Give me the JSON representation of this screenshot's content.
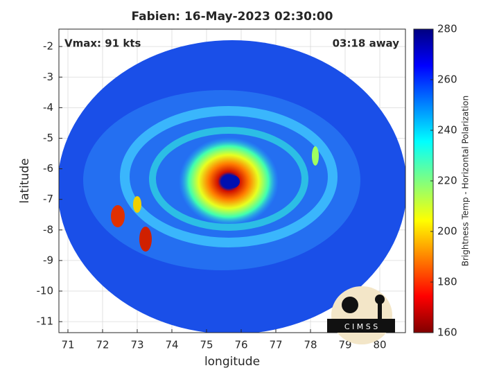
{
  "chart_data": {
    "type": "image",
    "title": "Fabien: 16-May-2023 02:30:00",
    "xlabel": "longitude",
    "ylabel": "latitude",
    "xlim": [
      70.74,
      80.74
    ],
    "xticks": [
      71,
      72,
      73,
      74,
      75,
      76,
      77,
      78,
      79,
      80
    ],
    "ylim": [
      -11.36,
      -1.43
    ],
    "yticks": [
      -2,
      -3,
      -4,
      -5,
      -6,
      -7,
      -8,
      -9,
      -10,
      -11
    ],
    "grid": true,
    "annotations": [
      "Vmax: 91 kts",
      "03:18 away"
    ],
    "colorbar": {
      "label": "Brightness Temp - Horizontal Polarization",
      "colormap": "jet",
      "lim": [
        160,
        280
      ],
      "ticks": [
        160,
        180,
        200,
        220,
        240,
        260,
        280
      ]
    },
    "logo": "C I M S S"
  }
}
